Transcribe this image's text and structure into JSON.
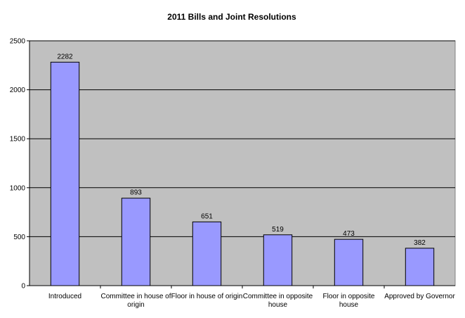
{
  "chart_data": {
    "type": "bar",
    "title": "2011 Bills and Joint Resolutions",
    "categories": [
      [
        "Introduced"
      ],
      [
        "Committee in house of",
        "origin"
      ],
      [
        "Floor in house of origin"
      ],
      [
        "Committee in opposite",
        "house"
      ],
      [
        "Floor in opposite",
        "house"
      ],
      [
        "Approved by Governor"
      ]
    ],
    "values": [
      2282,
      893,
      651,
      519,
      473,
      382
    ],
    "data_labels": [
      "2282",
      "893",
      "651",
      "519",
      "473",
      "382"
    ],
    "ylim": [
      0,
      2500
    ],
    "yticks": [
      0,
      500,
      1000,
      1500,
      2000,
      2500
    ],
    "grid": true,
    "legend": "none",
    "colors": {
      "bar_fill": "#9999ff",
      "bar_stroke": "#000000",
      "plot_background": "#c0c0c0",
      "gridline": "#000000"
    }
  }
}
